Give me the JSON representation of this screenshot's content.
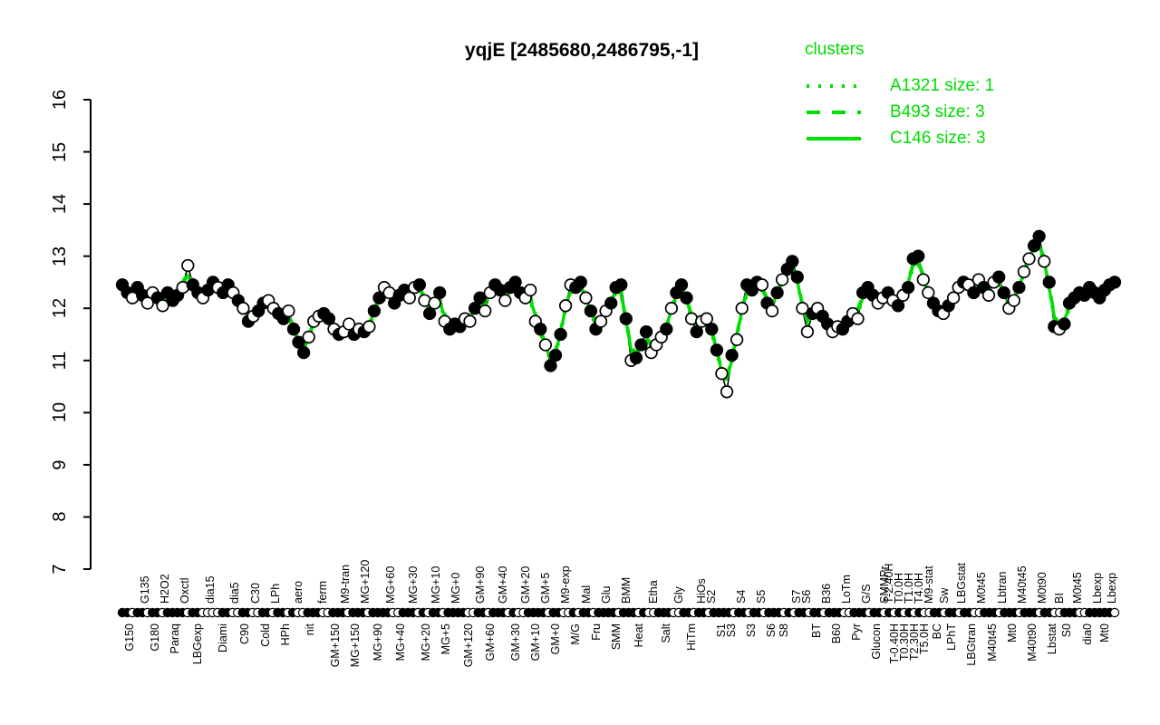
{
  "title": "yqjE [2485680,2486795,-1]",
  "colors": {
    "cluster_green": "#00DD00",
    "line_black": "#000000",
    "point_filled": "#000000",
    "point_open": "#FFFFFF",
    "axis": "#000000",
    "background": "#FFFFFF"
  },
  "legend": {
    "title": "clusters",
    "items": [
      {
        "label": "A1321 size: 1",
        "line_style": "dotted"
      },
      {
        "label": "B493 size: 3",
        "line_style": "dashed"
      },
      {
        "label": "C146 size: 3",
        "line_style": "solid"
      }
    ]
  },
  "chart_data": {
    "type": "line",
    "title": "yqjE [2485680,2486795,-1]",
    "xlabel": "",
    "ylabel": "",
    "ylim": [
      7,
      16
    ],
    "yticks": [
      7,
      8,
      9,
      10,
      11,
      12,
      13,
      14,
      15,
      16
    ],
    "grid": false,
    "legend_position": "top-right",
    "series": [
      {
        "name": "expression profile (points, black line)",
        "values": [
          12.45,
          12.3,
          12.2,
          12.4,
          12.25,
          12.1,
          12.3,
          12.2,
          12.05,
          12.3,
          12.15,
          12.25,
          12.4,
          12.82,
          12.45,
          12.3,
          12.2,
          12.35,
          12.5,
          12.4,
          12.3,
          12.45,
          12.3,
          12.15,
          12.0,
          11.75,
          11.85,
          11.95,
          12.1,
          12.15,
          12.0,
          11.9,
          11.8,
          11.95,
          11.6,
          11.35,
          11.15,
          11.45,
          11.75,
          11.85,
          11.9,
          11.8,
          11.6,
          11.5,
          11.55,
          11.7,
          11.5,
          11.6,
          11.55,
          11.65,
          11.95,
          12.2,
          12.4,
          12.3,
          12.1,
          12.25,
          12.35,
          12.2,
          12.4,
          12.45,
          12.15,
          11.9,
          12.1,
          12.3,
          11.75,
          11.6,
          11.7,
          11.65,
          11.8,
          11.75,
          12.0,
          12.2,
          11.95,
          12.3,
          12.45,
          12.35,
          12.15,
          12.4,
          12.5,
          12.3,
          12.2,
          12.35,
          11.75,
          11.6,
          11.3,
          10.9,
          11.1,
          11.5,
          12.05,
          12.45,
          12.4,
          12.5,
          12.2,
          11.95,
          11.6,
          11.75,
          11.95,
          12.1,
          12.4,
          12.45,
          11.8,
          11.0,
          11.05,
          11.3,
          11.55,
          11.15,
          11.3,
          11.45,
          11.6,
          12.0,
          12.3,
          12.45,
          12.2,
          11.8,
          11.55,
          11.75,
          11.8,
          11.6,
          11.2,
          10.75,
          10.4,
          11.1,
          11.4,
          12.0,
          12.45,
          12.35,
          12.5,
          12.45,
          12.1,
          11.95,
          12.3,
          12.55,
          12.75,
          12.9,
          12.6,
          12.0,
          11.55,
          11.9,
          12.0,
          11.85,
          11.7,
          11.55,
          11.65,
          11.6,
          11.75,
          11.9,
          11.8,
          12.3,
          12.4,
          12.25,
          12.1,
          12.2,
          12.3,
          12.15,
          12.05,
          12.25,
          12.4,
          12.95,
          13.0,
          12.55,
          12.3,
          12.1,
          11.95,
          11.9,
          12.05,
          12.2,
          12.4,
          12.5,
          12.45,
          12.3,
          12.55,
          12.4,
          12.25,
          12.5,
          12.6,
          12.3,
          12.0,
          12.15,
          12.4,
          12.7,
          12.95,
          13.2,
          13.38,
          12.9,
          12.5,
          11.65,
          11.6,
          11.7,
          12.1,
          12.2,
          12.3,
          12.25,
          12.4,
          12.3,
          12.2,
          12.35,
          12.45,
          12.5
        ],
        "point_types": "ffoffoofofffooffoffoffofofoffooffofffoooffofoofofoffoofffoofofofofffooffooffofffooofofffooffoffooffffofffooofofffofooffoofoofffofofofffoofoffooffoofffoofofofffooffofoofofofooffoofooffoffofff"
      },
      {
        "name": "A1321 cluster profile",
        "style": "dotted",
        "derived": "smoothed, offset -0.05"
      },
      {
        "name": "B493 cluster profile",
        "style": "dashed",
        "derived": "smoothed, offset +0.05"
      },
      {
        "name": "C146 cluster profile",
        "style": "solid",
        "derived": "smoothed"
      }
    ],
    "x_groups": [
      {
        "label": "G150",
        "side": "bottom",
        "markers": "ffof"
      },
      {
        "label": "G135",
        "side": "top",
        "markers": "fo"
      },
      {
        "label": "G180",
        "side": "bottom",
        "markers": "ff"
      },
      {
        "label": "H2O2",
        "side": "top",
        "markers": "of"
      },
      {
        "label": "Paraq",
        "side": "bottom",
        "markers": "ff"
      },
      {
        "label": "Oxctl",
        "side": "top",
        "markers": "fo"
      },
      {
        "label": "LBGexp",
        "side": "bottom",
        "markers": "ffo"
      },
      {
        "label": "dia15",
        "side": "top",
        "markers": "oo"
      },
      {
        "label": "Diami",
        "side": "bottom",
        "markers": "off"
      },
      {
        "label": "dia5",
        "side": "top",
        "markers": "oo"
      },
      {
        "label": "C90",
        "side": "bottom",
        "markers": "ff"
      },
      {
        "label": "C30",
        "side": "top",
        "markers": "oo"
      },
      {
        "label": "Cold",
        "side": "bottom",
        "markers": "ff"
      },
      {
        "label": "LPh",
        "side": "top",
        "markers": "of"
      },
      {
        "label": "HPh",
        "side": "bottom",
        "markers": "fo"
      },
      {
        "label": "aero",
        "side": "top",
        "markers": "foo"
      },
      {
        "label": "nit",
        "side": "bottom",
        "markers": "ff"
      },
      {
        "label": "ferm",
        "side": "top",
        "markers": "foo"
      },
      {
        "label": "GM+150",
        "side": "bottom",
        "markers": "ff"
      },
      {
        "label": "M9-tran",
        "side": "top",
        "markers": "fo"
      },
      {
        "label": "MG+150",
        "side": "bottom",
        "markers": "ff"
      },
      {
        "label": "MG+120",
        "side": "top",
        "markers": "fo"
      },
      {
        "label": "MG+90",
        "side": "bottom",
        "markers": "fff"
      },
      {
        "label": "MG+60",
        "side": "top",
        "markers": "fo"
      },
      {
        "label": "MG+40",
        "side": "bottom",
        "markers": "of"
      },
      {
        "label": "MG+30",
        "side": "top",
        "markers": "ffo"
      },
      {
        "label": "MG+20",
        "side": "bottom",
        "markers": "fo"
      },
      {
        "label": "MG+10",
        "side": "top",
        "markers": "ff"
      },
      {
        "label": "MG+5",
        "side": "bottom",
        "markers": "of"
      },
      {
        "label": "MG+0",
        "side": "top",
        "markers": "ff"
      },
      {
        "label": "GM+120",
        "side": "bottom",
        "markers": "foo"
      },
      {
        "label": "GM+90",
        "side": "top",
        "markers": "ff"
      },
      {
        "label": "GM+60",
        "side": "bottom",
        "markers": "of"
      },
      {
        "label": "GM+40",
        "side": "top",
        "markers": "ffo"
      },
      {
        "label": "GM+30",
        "side": "bottom",
        "markers": "fo"
      },
      {
        "label": "GM+20",
        "side": "top",
        "markers": "of"
      },
      {
        "label": "GM+10",
        "side": "bottom",
        "markers": "ff"
      },
      {
        "label": "GM+5",
        "side": "top",
        "markers": "fo"
      },
      {
        "label": "GM+0",
        "side": "bottom",
        "markers": "ff"
      },
      {
        "label": "M9-exp",
        "side": "top",
        "markers": "oo"
      },
      {
        "label": "M/G",
        "side": "bottom",
        "markers": "fo"
      },
      {
        "label": "Mal",
        "side": "top",
        "markers": "ff"
      },
      {
        "label": "Fru",
        "side": "bottom",
        "markers": "of"
      },
      {
        "label": "Glu",
        "side": "top",
        "markers": "ff"
      },
      {
        "label": "SMM",
        "side": "bottom",
        "markers": "fo"
      },
      {
        "label": "BMM",
        "side": "top",
        "markers": "ff"
      },
      {
        "label": "Heat",
        "side": "bottom",
        "markers": "fof"
      },
      {
        "label": "Etha",
        "side": "top",
        "markers": "oof"
      },
      {
        "label": "Salt",
        "side": "bottom",
        "markers": "ff"
      },
      {
        "label": "Gly",
        "side": "top",
        "markers": "oof"
      },
      {
        "label": "HiTm",
        "side": "bottom",
        "markers": "fo"
      },
      {
        "label": "HiOs",
        "side": "top",
        "markers": "ff"
      },
      {
        "label": "S2",
        "side": "top",
        "markers": "of"
      },
      {
        "label": "S1",
        "side": "bottom",
        "markers": "ff"
      },
      {
        "label": "S3",
        "side": "bottom",
        "markers": "fo"
      },
      {
        "label": "S4",
        "side": "top",
        "markers": "ff"
      },
      {
        "label": "S3",
        "side": "bottom",
        "markers": "of"
      },
      {
        "label": "S5",
        "side": "top",
        "markers": "fo"
      },
      {
        "label": "S6",
        "side": "bottom",
        "markers": "ff"
      },
      {
        "label": "S8",
        "side": "bottom",
        "markers": "fof"
      },
      {
        "label": "S7",
        "side": "top",
        "markers": "of"
      },
      {
        "label": "S6",
        "side": "top",
        "markers": "fo"
      },
      {
        "label": "BT",
        "side": "bottom",
        "markers": "ff"
      },
      {
        "label": "B36",
        "side": "top",
        "markers": "of"
      },
      {
        "label": "B60",
        "side": "bottom",
        "markers": "ff"
      },
      {
        "label": "LoTm",
        "side": "top",
        "markers": "oo"
      },
      {
        "label": "Pyr",
        "side": "bottom",
        "markers": "ff"
      },
      {
        "label": "G/S",
        "side": "top",
        "markers": "fo"
      },
      {
        "label": "Glucon",
        "side": "bottom",
        "markers": "ff"
      },
      {
        "label": "SMMPr",
        "side": "top",
        "markers": "o"
      },
      {
        "label": "T-2.40H",
        "side": "top",
        "markers": "f"
      },
      {
        "label": "T-0.40H",
        "side": "bottom",
        "markers": "o"
      },
      {
        "label": "T0.0H",
        "side": "top",
        "markers": "f"
      },
      {
        "label": "T0.30H",
        "side": "bottom",
        "markers": "o"
      },
      {
        "label": "T1.0H",
        "side": "top",
        "markers": "f"
      },
      {
        "label": "T2.30H",
        "side": "bottom",
        "markers": "o"
      },
      {
        "label": "T4.0H",
        "side": "top",
        "markers": "f"
      },
      {
        "label": "T5.0H",
        "side": "bottom",
        "markers": "o"
      },
      {
        "label": "M9-stat",
        "side": "top",
        "markers": "o"
      },
      {
        "label": "BC",
        "side": "bottom",
        "markers": "ff"
      },
      {
        "label": "Sw",
        "side": "top",
        "markers": "o"
      },
      {
        "label": "LPhT",
        "side": "bottom",
        "markers": "ff"
      },
      {
        "label": "LBGstat",
        "side": "top",
        "markers": "of"
      },
      {
        "label": "LBGtran",
        "side": "bottom",
        "markers": "fo"
      },
      {
        "label": "M0t45",
        "side": "top",
        "markers": "of"
      },
      {
        "label": "M40t45",
        "side": "bottom",
        "markers": "ff"
      },
      {
        "label": "Lbtran",
        "side": "top",
        "markers": "of"
      },
      {
        "label": "Mt0",
        "side": "bottom",
        "markers": "ff"
      },
      {
        "label": "M40t45",
        "side": "top",
        "markers": "of"
      },
      {
        "label": "M40t90",
        "side": "bottom",
        "markers": "ff"
      },
      {
        "label": "M0t90",
        "side": "top",
        "markers": "of"
      },
      {
        "label": "Lbstat",
        "side": "bottom",
        "markers": "fo"
      },
      {
        "label": "BI",
        "side": "top",
        "markers": "o"
      },
      {
        "label": "S0",
        "side": "bottom",
        "markers": "ff"
      },
      {
        "label": "M0t45",
        "side": "top",
        "markers": "fo"
      },
      {
        "label": "dia0",
        "side": "bottom",
        "markers": "of"
      },
      {
        "label": "Lbexp",
        "side": "top",
        "markers": "ff"
      },
      {
        "label": "Mt0",
        "side": "bottom",
        "markers": "f"
      },
      {
        "label": "Lbexp",
        "side": "top",
        "markers": "fo"
      }
    ]
  }
}
